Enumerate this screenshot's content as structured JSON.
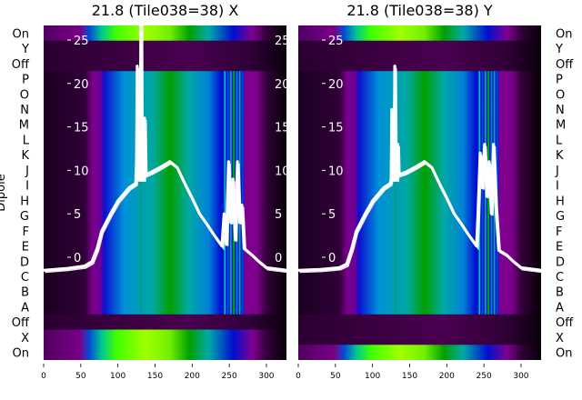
{
  "chart_data": [
    {
      "type": "heatmap",
      "title": "21.8 (Tile038=38) X",
      "ylabel": "Dipole",
      "row_labels": [
        "On",
        "Y",
        "Off",
        "P",
        "O",
        "N",
        "M",
        "L",
        "K",
        "J",
        "I",
        "H",
        "G",
        "F",
        "E",
        "D",
        "C",
        "B",
        "A",
        "Off",
        "X",
        "On"
      ],
      "row_kind": [
        "bright",
        "dark",
        "dark",
        "spec",
        "spec",
        "spec",
        "spec",
        "spec",
        "spec",
        "spec",
        "spec",
        "spec",
        "spec",
        "spec",
        "spec",
        "spec",
        "spec",
        "spec",
        "spec",
        "dark",
        "bright",
        "bright"
      ],
      "xlim": [
        0,
        327
      ],
      "xticks": [
        "0",
        "50",
        "100",
        "150",
        "200",
        "250",
        "300"
      ],
      "overlay_ylim_ticks": [
        "0",
        "5",
        "10",
        "15",
        "20",
        "25"
      ],
      "overlay_line": {
        "color": "#ffffff",
        "x": [
          0,
          30,
          55,
          65,
          72,
          78,
          90,
          100,
          115,
          124,
          125,
          126,
          127,
          130,
          131,
          132,
          135,
          136,
          137,
          145,
          160,
          170,
          180,
          190,
          200,
          210,
          220,
          230,
          240,
          243,
          246,
          249,
          252,
          255,
          258,
          261,
          264,
          267,
          270,
          280,
          290,
          300,
          327
        ],
        "y": [
          -1.5,
          -1.3,
          -1,
          -0.5,
          1,
          3,
          5,
          6.5,
          8,
          8.5,
          11,
          22,
          9,
          9,
          30,
          9,
          9,
          16,
          9.5,
          9.8,
          10.5,
          11,
          10.3,
          8.5,
          6.8,
          5,
          3.8,
          2.5,
          1.3,
          5,
          1.5,
          11,
          4,
          9,
          2,
          11,
          4,
          6,
          1,
          0.3,
          -0.5,
          -1.2,
          -1.5
        ]
      }
    },
    {
      "type": "heatmap",
      "title": "21.8 (Tile038=38) Y",
      "ylabel": "",
      "row_labels": [
        "On",
        "Y",
        "Off",
        "P",
        "O",
        "N",
        "M",
        "L",
        "K",
        "J",
        "I",
        "H",
        "G",
        "F",
        "E",
        "D",
        "C",
        "B",
        "A",
        "Off",
        "X",
        "On"
      ],
      "row_kind": [
        "bright",
        "dark",
        "dark",
        "spec",
        "spec",
        "spec",
        "spec",
        "spec",
        "spec",
        "spec",
        "spec",
        "spec",
        "spec",
        "spec",
        "spec",
        "spec",
        "spec",
        "spec",
        "spec",
        "dark",
        "dark",
        "bright"
      ],
      "xlim": [
        0,
        327
      ],
      "xticks": [
        "0",
        "50",
        "100",
        "150",
        "200",
        "250",
        "300"
      ],
      "overlay_ylim_ticks": [
        "0",
        "5",
        "10",
        "15",
        "20",
        "25"
      ],
      "overlay_line": {
        "color": "#ffffff",
        "x": [
          0,
          30,
          55,
          65,
          72,
          78,
          90,
          100,
          115,
          124,
          125,
          126,
          127,
          129,
          130,
          131,
          133,
          134,
          135,
          145,
          160,
          170,
          180,
          190,
          200,
          210,
          220,
          230,
          240,
          242,
          245,
          248,
          251,
          254,
          257,
          260,
          263,
          266,
          270,
          280,
          290,
          300,
          327
        ],
        "y": [
          -1.5,
          -1.4,
          -1.2,
          -0.8,
          1,
          3,
          5,
          6.5,
          8,
          8.5,
          9,
          17,
          9,
          9,
          22,
          9,
          9,
          13,
          9.5,
          9.8,
          10.5,
          11,
          10.3,
          8.5,
          6.8,
          5,
          3.8,
          2.5,
          1.3,
          5,
          12,
          8,
          13,
          7,
          11,
          5,
          13,
          6,
          0.8,
          0.3,
          -0.5,
          -1.2,
          -1.5
        ]
      }
    }
  ]
}
